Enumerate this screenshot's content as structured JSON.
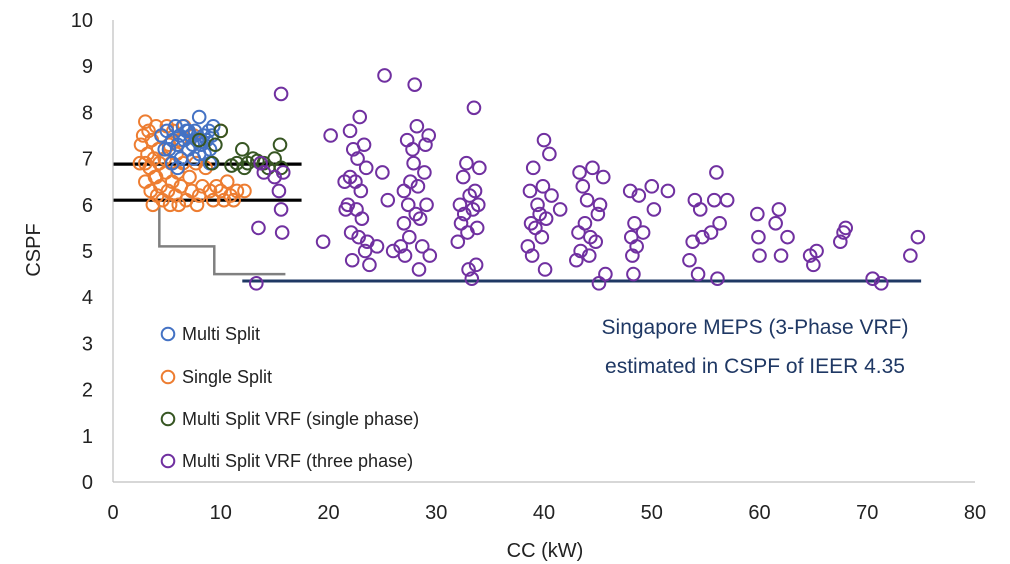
{
  "chart_data": {
    "type": "scatter",
    "xlabel": "CC (kW)",
    "ylabel": "CSPF",
    "xlim": [
      0,
      80
    ],
    "ylim": [
      0,
      10
    ],
    "xticks": [
      "0",
      "10",
      "20",
      "30",
      "40",
      "50",
      "60",
      "70",
      "80"
    ],
    "yticks": [
      "0",
      "1",
      "2",
      "3",
      "4",
      "5",
      "6",
      "7",
      "8",
      "9",
      "10"
    ],
    "grid": false,
    "legend_position": "bottom-left",
    "colors": {
      "multi_split": "#4472C4",
      "single_split": "#ED7D31",
      "vrf_single_phase": "#375623",
      "vrf_three_phase": "#7030A0",
      "meps_line": "#1F3864",
      "threshold_lines": "#000000",
      "step_line": "#808080"
    },
    "annotation": [
      "Singapore MEPS (3-Phase VRF)",
      "estimated in CSPF of IEER 4.35"
    ],
    "reference_lines": [
      {
        "kind": "meps",
        "x": [
          12,
          75
        ],
        "y": [
          4.35,
          4.35
        ]
      },
      {
        "kind": "threshold",
        "x": [
          0,
          17.5
        ],
        "y": [
          6.88,
          6.88
        ]
      },
      {
        "kind": "threshold",
        "x": [
          0,
          17.5
        ],
        "y": [
          6.1,
          6.1
        ]
      },
      {
        "kind": "step",
        "x": [
          4.3,
          4.3,
          9.4,
          9.4,
          16
        ],
        "y": [
          5.95,
          5.1,
          5.1,
          4.5,
          4.5
        ]
      }
    ],
    "series": [
      {
        "name": "Multi Split",
        "points": [
          [
            4.5,
            7.5
          ],
          [
            5.0,
            7.6
          ],
          [
            5.2,
            7.2
          ],
          [
            5.5,
            7.4
          ],
          [
            5.8,
            7.7
          ],
          [
            6.0,
            7.3
          ],
          [
            6.2,
            7.5
          ],
          [
            6.3,
            7.0
          ],
          [
            6.5,
            7.7
          ],
          [
            6.6,
            7.4
          ],
          [
            6.8,
            7.6
          ],
          [
            7.0,
            7.2
          ],
          [
            7.2,
            7.5
          ],
          [
            7.4,
            7.3
          ],
          [
            7.6,
            7.6
          ],
          [
            7.8,
            7.4
          ],
          [
            8.0,
            7.9
          ],
          [
            8.2,
            7.3
          ],
          [
            8.4,
            7.5
          ],
          [
            8.5,
            7.1
          ],
          [
            8.7,
            7.4
          ],
          [
            8.9,
            7.6
          ],
          [
            9.0,
            7.2
          ],
          [
            9.2,
            7.5
          ],
          [
            9.3,
            7.7
          ],
          [
            7.5,
            7.0
          ],
          [
            8.0,
            7.1
          ],
          [
            5.5,
            6.9
          ],
          [
            6.0,
            6.8
          ],
          [
            9.0,
            6.9
          ],
          [
            4.8,
            7.2
          ],
          [
            7.0,
            7.6
          ]
        ]
      },
      {
        "name": "Single Split",
        "points": [
          [
            2.5,
            6.9
          ],
          [
            2.6,
            7.3
          ],
          [
            2.8,
            7.5
          ],
          [
            3.0,
            7.8
          ],
          [
            3.0,
            6.5
          ],
          [
            3.2,
            7.1
          ],
          [
            3.3,
            7.6
          ],
          [
            3.4,
            6.8
          ],
          [
            3.5,
            6.3
          ],
          [
            3.6,
            7.4
          ],
          [
            3.7,
            6.0
          ],
          [
            3.8,
            7.0
          ],
          [
            3.9,
            6.6
          ],
          [
            4.0,
            7.7
          ],
          [
            4.1,
            6.2
          ],
          [
            4.2,
            7.2
          ],
          [
            4.3,
            6.9
          ],
          [
            4.4,
            6.4
          ],
          [
            4.5,
            7.5
          ],
          [
            4.6,
            6.1
          ],
          [
            4.8,
            7.0
          ],
          [
            4.9,
            6.7
          ],
          [
            5.0,
            7.7
          ],
          [
            5.1,
            6.3
          ],
          [
            5.2,
            7.3
          ],
          [
            5.4,
            6.9
          ],
          [
            5.5,
            6.5
          ],
          [
            5.6,
            7.6
          ],
          [
            5.8,
            6.2
          ],
          [
            5.9,
            7.1
          ],
          [
            6.0,
            6.7
          ],
          [
            6.2,
            7.4
          ],
          [
            6.3,
            6.4
          ],
          [
            6.5,
            6.9
          ],
          [
            6.6,
            7.7
          ],
          [
            6.8,
            6.1
          ],
          [
            7.0,
            7.2
          ],
          [
            7.1,
            6.6
          ],
          [
            7.3,
            6.3
          ],
          [
            7.5,
            7.5
          ],
          [
            7.7,
            6.9
          ],
          [
            8.0,
            6.2
          ],
          [
            8.3,
            6.4
          ],
          [
            8.6,
            6.8
          ],
          [
            9.0,
            6.3
          ],
          [
            9.3,
            6.1
          ],
          [
            9.6,
            6.4
          ],
          [
            10.0,
            6.3
          ],
          [
            10.3,
            6.1
          ],
          [
            10.6,
            6.5
          ],
          [
            10.9,
            6.2
          ],
          [
            11.2,
            6.1
          ],
          [
            11.5,
            6.3
          ],
          [
            12.2,
            6.3
          ],
          [
            10.0,
            7.6
          ],
          [
            3.0,
            6.9
          ],
          [
            4.0,
            6.6
          ],
          [
            5.3,
            6.0
          ],
          [
            6.1,
            6.0
          ],
          [
            7.8,
            6.0
          ]
        ]
      },
      {
        "name": "Multi Split VRF (single phase)",
        "points": [
          [
            8.0,
            7.4
          ],
          [
            9.5,
            7.3
          ],
          [
            10.0,
            7.6
          ],
          [
            11.0,
            6.85
          ],
          [
            11.5,
            6.9
          ],
          [
            12.0,
            7.2
          ],
          [
            12.2,
            6.8
          ],
          [
            12.5,
            6.9
          ],
          [
            13.0,
            7.0
          ],
          [
            13.4,
            6.95
          ],
          [
            14.0,
            6.9
          ],
          [
            14.4,
            6.8
          ],
          [
            15.0,
            7.0
          ],
          [
            15.5,
            7.3
          ],
          [
            15.6,
            6.8
          ],
          [
            9.2,
            6.9
          ]
        ]
      },
      {
        "name": "Multi Split VRF (three phase)",
        "points": [
          [
            13.3,
            4.3
          ],
          [
            13.5,
            5.5
          ],
          [
            13.7,
            6.9
          ],
          [
            14.0,
            6.7
          ],
          [
            15.0,
            6.6
          ],
          [
            15.4,
            6.3
          ],
          [
            15.6,
            5.9
          ],
          [
            15.6,
            8.4
          ],
          [
            15.7,
            5.4
          ],
          [
            15.8,
            6.7
          ],
          [
            19.5,
            5.2
          ],
          [
            20.2,
            7.5
          ],
          [
            21.5,
            6.5
          ],
          [
            21.6,
            5.9
          ],
          [
            21.8,
            6.0
          ],
          [
            22.0,
            7.6
          ],
          [
            22.0,
            6.6
          ],
          [
            22.1,
            5.4
          ],
          [
            22.2,
            4.8
          ],
          [
            22.3,
            7.2
          ],
          [
            22.5,
            6.5
          ],
          [
            22.6,
            5.9
          ],
          [
            22.7,
            7.0
          ],
          [
            22.8,
            5.3
          ],
          [
            22.9,
            7.9
          ],
          [
            23.0,
            6.3
          ],
          [
            23.1,
            5.7
          ],
          [
            23.3,
            7.3
          ],
          [
            23.4,
            5.0
          ],
          [
            23.5,
            6.8
          ],
          [
            23.6,
            5.2
          ],
          [
            23.8,
            4.7
          ],
          [
            24.5,
            5.1
          ],
          [
            25.0,
            6.7
          ],
          [
            25.2,
            8.8
          ],
          [
            25.5,
            6.1
          ],
          [
            26.0,
            5.0
          ],
          [
            26.7,
            5.1
          ],
          [
            27.0,
            6.3
          ],
          [
            27.0,
            5.6
          ],
          [
            27.1,
            4.9
          ],
          [
            27.3,
            7.4
          ],
          [
            27.4,
            6.0
          ],
          [
            27.5,
            5.3
          ],
          [
            27.6,
            6.5
          ],
          [
            27.8,
            7.2
          ],
          [
            27.9,
            6.9
          ],
          [
            28.0,
            8.6
          ],
          [
            28.1,
            5.8
          ],
          [
            28.2,
            7.7
          ],
          [
            28.3,
            6.4
          ],
          [
            28.4,
            4.6
          ],
          [
            28.5,
            5.7
          ],
          [
            28.7,
            5.1
          ],
          [
            28.9,
            6.7
          ],
          [
            29.0,
            7.3
          ],
          [
            29.1,
            6.0
          ],
          [
            29.3,
            7.5
          ],
          [
            29.4,
            4.9
          ],
          [
            32.0,
            5.2
          ],
          [
            32.2,
            6.0
          ],
          [
            32.3,
            5.6
          ],
          [
            32.5,
            6.6
          ],
          [
            32.6,
            5.8
          ],
          [
            32.8,
            6.9
          ],
          [
            32.9,
            5.4
          ],
          [
            33.0,
            4.6
          ],
          [
            33.1,
            6.2
          ],
          [
            33.3,
            4.4
          ],
          [
            33.4,
            5.9
          ],
          [
            33.5,
            8.1
          ],
          [
            33.6,
            6.3
          ],
          [
            33.7,
            4.7
          ],
          [
            33.8,
            5.5
          ],
          [
            33.9,
            6.0
          ],
          [
            34.0,
            6.8
          ],
          [
            38.5,
            5.1
          ],
          [
            38.7,
            6.3
          ],
          [
            38.8,
            5.6
          ],
          [
            38.9,
            4.9
          ],
          [
            39.0,
            6.8
          ],
          [
            39.2,
            5.5
          ],
          [
            39.4,
            6.0
          ],
          [
            39.6,
            5.8
          ],
          [
            39.8,
            5.3
          ],
          [
            39.9,
            6.4
          ],
          [
            40.0,
            7.4
          ],
          [
            40.1,
            4.6
          ],
          [
            40.2,
            5.7
          ],
          [
            40.5,
            7.1
          ],
          [
            40.7,
            6.2
          ],
          [
            41.5,
            5.9
          ],
          [
            43.0,
            4.8
          ],
          [
            43.2,
            5.4
          ],
          [
            43.3,
            6.7
          ],
          [
            43.4,
            5.0
          ],
          [
            43.6,
            6.4
          ],
          [
            43.8,
            5.6
          ],
          [
            44.0,
            6.1
          ],
          [
            44.2,
            4.9
          ],
          [
            44.3,
            5.3
          ],
          [
            44.5,
            6.8
          ],
          [
            44.8,
            5.2
          ],
          [
            45.0,
            5.8
          ],
          [
            45.1,
            4.3
          ],
          [
            45.2,
            6.0
          ],
          [
            45.5,
            6.6
          ],
          [
            45.7,
            4.5
          ],
          [
            48.0,
            6.3
          ],
          [
            48.1,
            5.3
          ],
          [
            48.2,
            4.9
          ],
          [
            48.3,
            4.5
          ],
          [
            48.4,
            5.6
          ],
          [
            48.6,
            5.1
          ],
          [
            48.8,
            6.2
          ],
          [
            49.2,
            5.4
          ],
          [
            50.0,
            6.4
          ],
          [
            50.2,
            5.9
          ],
          [
            51.5,
            6.3
          ],
          [
            53.5,
            4.8
          ],
          [
            53.8,
            5.2
          ],
          [
            54.0,
            6.1
          ],
          [
            54.3,
            4.5
          ],
          [
            54.5,
            5.9
          ],
          [
            54.7,
            5.3
          ],
          [
            55.5,
            5.4
          ],
          [
            55.8,
            6.1
          ],
          [
            56.0,
            6.7
          ],
          [
            56.1,
            4.4
          ],
          [
            56.3,
            5.6
          ],
          [
            57.0,
            6.1
          ],
          [
            59.8,
            5.8
          ],
          [
            59.9,
            5.3
          ],
          [
            60.0,
            4.9
          ],
          [
            61.5,
            5.6
          ],
          [
            61.8,
            5.9
          ],
          [
            62.0,
            4.9
          ],
          [
            62.6,
            5.3
          ],
          [
            64.7,
            4.9
          ],
          [
            65.0,
            4.7
          ],
          [
            65.3,
            5.0
          ],
          [
            67.5,
            5.2
          ],
          [
            67.8,
            5.4
          ],
          [
            68.0,
            5.5
          ],
          [
            70.5,
            4.4
          ],
          [
            71.3,
            4.3
          ],
          [
            74.0,
            4.9
          ],
          [
            74.7,
            5.3
          ]
        ]
      }
    ]
  }
}
